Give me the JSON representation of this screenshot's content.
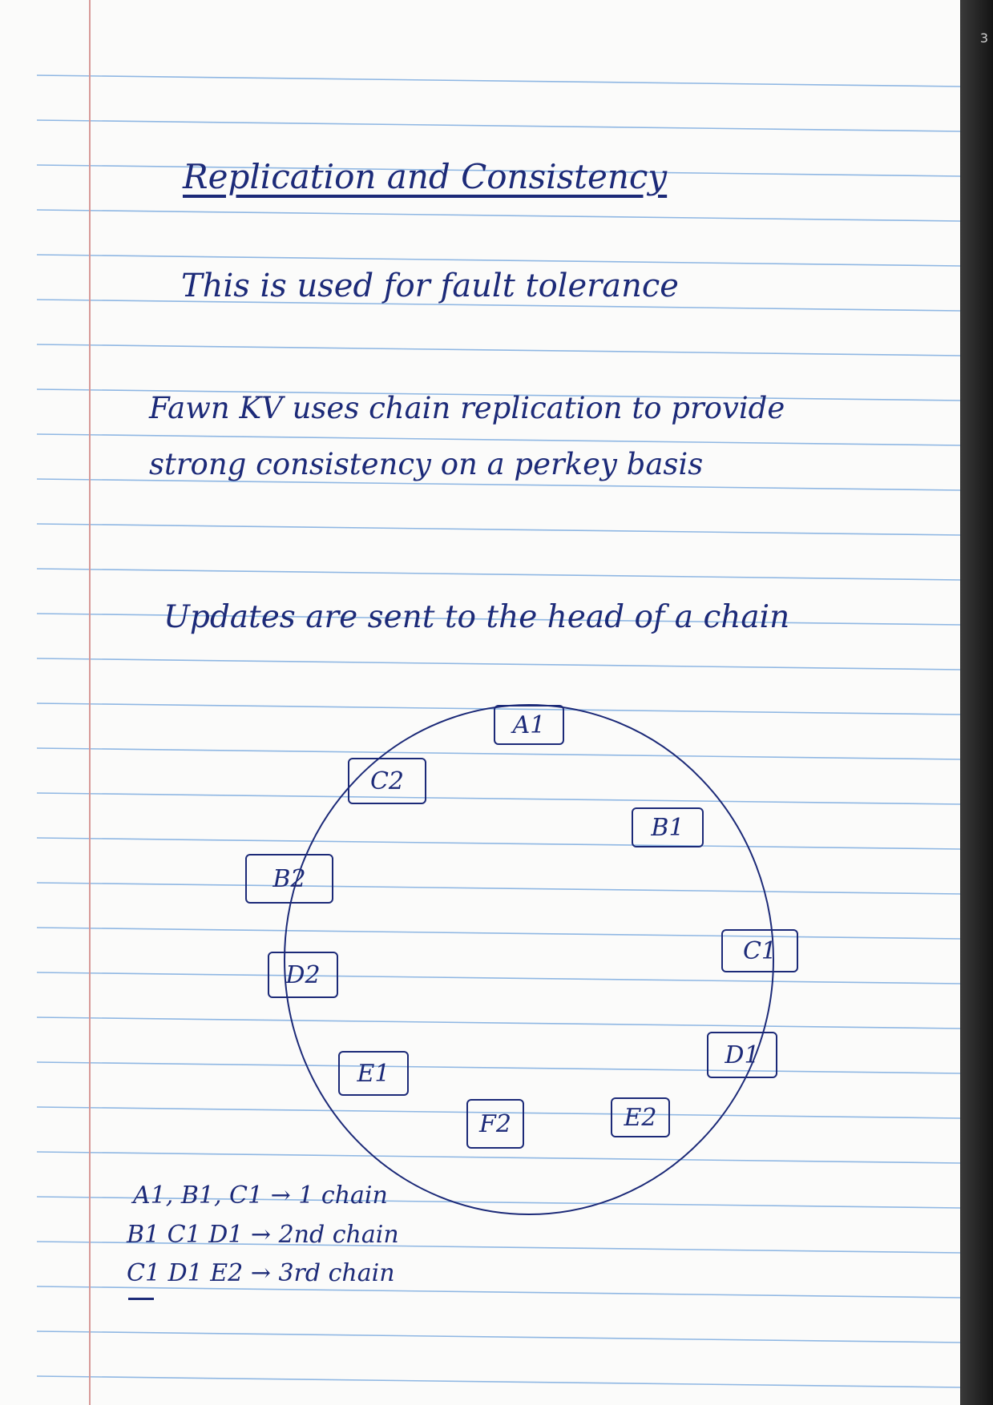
{
  "notes": {
    "title": "Replication and Consistency",
    "line1": "This is used for fault tolerance",
    "line2": "Fawn KV uses chain replication to provide",
    "line3": "strong consistency on a perkey basis",
    "line4": "Updates are sent to the head of a chain"
  },
  "diagram": {
    "nodes": [
      {
        "id": "A1",
        "label": "A1"
      },
      {
        "id": "B1",
        "label": "B1"
      },
      {
        "id": "C1",
        "label": "C1"
      },
      {
        "id": "D1",
        "label": "D1"
      },
      {
        "id": "E2",
        "label": "E2"
      },
      {
        "id": "F2",
        "label": "F2"
      },
      {
        "id": "E1",
        "label": "E1"
      },
      {
        "id": "D2",
        "label": "D2"
      },
      {
        "id": "B2",
        "label": "B2"
      },
      {
        "id": "C2",
        "label": "C2"
      }
    ]
  },
  "chains": {
    "chain1": "A1, B1, C1 → 1 chain",
    "chain2": "B1 C1 D1 → 2nd chain",
    "chain3": "C1 D1 E2 → 3rd chain"
  },
  "colors": {
    "ink": "#1c2a78",
    "rule": "#8fb7e3",
    "margin": "#d79a98"
  }
}
